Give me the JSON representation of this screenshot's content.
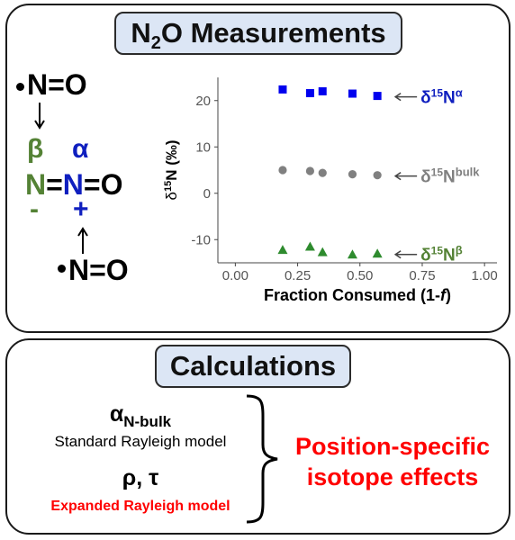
{
  "top_panel": {
    "title_main": "N",
    "title_sub": "2",
    "title_rest": "O Measurements"
  },
  "structure": {
    "radical_top": "N=O",
    "label_beta": "β",
    "label_alpha": "α",
    "n_beta": "N",
    "n_alpha": "N",
    "bond_eq1": "=",
    "bond_eq2": "=O",
    "charge_minus": "-",
    "charge_plus": "+",
    "radical_bottom": "N=O",
    "colors": {
      "beta": "#548235",
      "alpha": "#0f1fbf",
      "black": "#000000"
    }
  },
  "chart_data": {
    "type": "scatter",
    "xlabel_main": "Fraction Consumed (1-",
    "xlabel_italic": "f",
    "xlabel_end": ")",
    "ylabel_delta": "δ",
    "ylabel_sup": "15",
    "ylabel_rest": "N (‰)",
    "xlim": [
      -0.07,
      1.05
    ],
    "ylim": [
      -15,
      25
    ],
    "x_ticks": [
      0.0,
      0.25,
      0.5,
      0.75,
      1.0
    ],
    "x_tick_labels": [
      "0.00",
      "0.25",
      "0.50",
      "0.75",
      "1.00"
    ],
    "y_ticks": [
      -10,
      0,
      10,
      20
    ],
    "y_tick_labels": [
      "-10",
      "0",
      "10",
      "20"
    ],
    "grid": false,
    "series": [
      {
        "name": "δ15Nα",
        "label_delta": "δ",
        "label_sup": "15",
        "label_base": "N",
        "label_tag": "α",
        "marker": "square",
        "color": "#0000ee",
        "x": [
          0.19,
          0.3,
          0.35,
          0.47,
          0.57
        ],
        "y": [
          22.4,
          21.6,
          22.0,
          21.5,
          21.0
        ]
      },
      {
        "name": "δ15Nbulk",
        "label_delta": "δ",
        "label_sup": "15",
        "label_base": "N",
        "label_tag": "bulk",
        "marker": "circle",
        "color": "#808080",
        "x": [
          0.19,
          0.3,
          0.35,
          0.47,
          0.57
        ],
        "y": [
          5.0,
          4.8,
          4.4,
          4.1,
          3.9
        ]
      },
      {
        "name": "δ15Nβ",
        "label_delta": "δ",
        "label_sup": "15",
        "label_base": "N",
        "label_tag": "β",
        "marker": "triangle",
        "color": "#2e8b2e",
        "x": [
          0.19,
          0.3,
          0.35,
          0.47,
          0.57
        ],
        "y": [
          -12.2,
          -11.5,
          -12.7,
          -13.2,
          -13.0
        ]
      }
    ]
  },
  "bottom_panel": {
    "title": "Calculations",
    "alpha_symbol": "α",
    "alpha_sub": "N-bulk",
    "standard_model": "Standard Rayleigh model",
    "rho_tau": "ρ, τ",
    "expanded_model": "Expanded Rayleigh model",
    "result_line1": "Position-specific",
    "result_line2": "isotope effects",
    "red": "#ff0000"
  }
}
